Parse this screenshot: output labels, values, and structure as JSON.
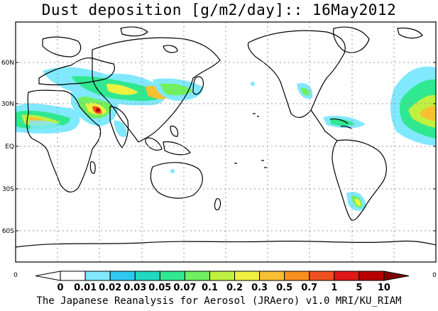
{
  "title": "Dust deposition [g/m2/day]:: 16May2012",
  "footer": "The Japanese Reanalysis for Aerosol (JRAero) v1.0 MRI/KU_RIAM",
  "lat_labels": [
    "60N",
    "30N",
    "EQ",
    "30S",
    "60S"
  ],
  "lat_values": [
    60,
    30,
    0,
    -30,
    -60
  ],
  "axis_corner_labels": [
    "0",
    "0"
  ],
  "colorbar": {
    "labels": [
      "0",
      "0.01",
      "0.02",
      "0.03",
      "0.05",
      "0.07",
      "0.1",
      "0.2",
      "0.3",
      "0.5",
      "0.7",
      "1",
      "5",
      "10"
    ],
    "colors": [
      "#ffffff",
      "#ffffff",
      "#80e8ff",
      "#30c8f0",
      "#20d8c0",
      "#30e890",
      "#70f060",
      "#c0f040",
      "#f0f040",
      "#f8c030",
      "#f89020",
      "#f05020",
      "#e01818",
      "#b80000",
      "#800000"
    ]
  }
}
